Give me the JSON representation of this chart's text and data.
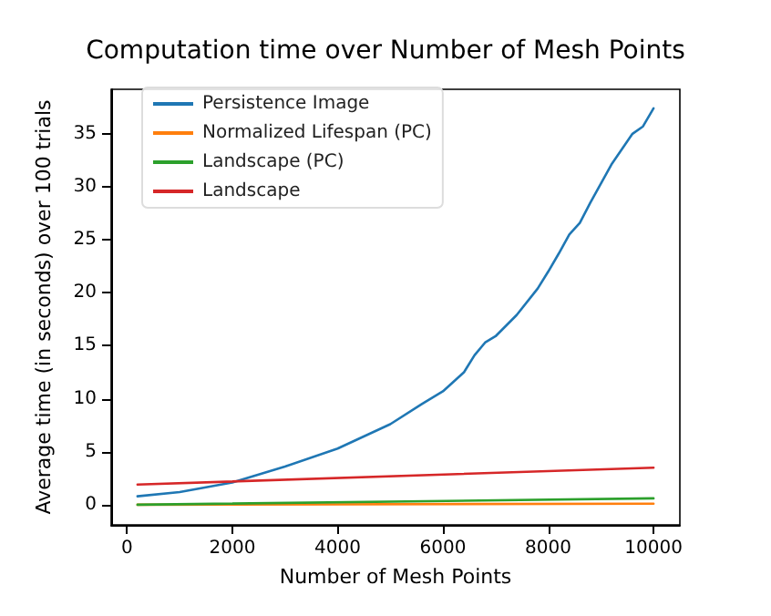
{
  "chart_data": {
    "type": "line",
    "title": "Computation time over Number of Mesh Points",
    "xlabel": "Number of Mesh Points",
    "ylabel": "Average time (in seconds) over 100 trials",
    "xlim": [
      -300,
      10500
    ],
    "ylim": [
      -1.9,
      39.2
    ],
    "xticks": [
      0,
      2000,
      4000,
      6000,
      8000,
      10000
    ],
    "yticks": [
      0,
      5,
      10,
      15,
      20,
      25,
      30,
      35
    ],
    "legend": "top left",
    "marker": "none",
    "line_style": "solid",
    "series": [
      {
        "name": "Persistence Image",
        "color": "#1f77b4",
        "x": [
          200,
          1000,
          2000,
          3000,
          4000,
          5000,
          5600,
          6000,
          6400,
          6600,
          6800,
          7000,
          7400,
          7800,
          8000,
          8200,
          8400,
          8600,
          8800,
          9200,
          9600,
          9800,
          10000
        ],
        "values": [
          0.8,
          1.2,
          2.1,
          3.6,
          5.3,
          7.6,
          9.5,
          10.7,
          12.5,
          14.1,
          15.3,
          15.9,
          17.9,
          20.4,
          22.0,
          23.7,
          25.5,
          26.6,
          28.5,
          32.1,
          35.0,
          35.7,
          37.4
        ]
      },
      {
        "name": "Normalized Lifespan (PC)",
        "color": "#ff7f0e",
        "x": [
          200,
          10000
        ],
        "values": [
          0.0,
          0.1
        ]
      },
      {
        "name": "Landscape (PC)",
        "color": "#2ca02c",
        "x": [
          200,
          10000
        ],
        "values": [
          0.0,
          0.6
        ]
      },
      {
        "name": "Landscape",
        "color": "#d62728",
        "x": [
          200,
          10000
        ],
        "values": [
          1.9,
          3.5
        ]
      }
    ]
  }
}
